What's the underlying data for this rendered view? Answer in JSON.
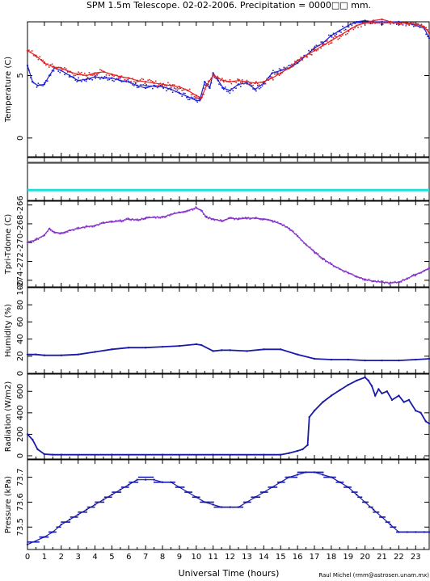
{
  "chart_data": {
    "type": "scatter",
    "title": "SPM 1.5m Telescope. 02-02-2006. Precipitation = 0000□□ mm.",
    "xlabel": "Universal Time (hours)",
    "credit": "Raul Michel (rmm@astrosen.unam.mx)",
    "x_ticks": [
      "0",
      "1",
      "2",
      "3",
      "4",
      "5",
      "6",
      "7",
      "8",
      "9",
      "10",
      "11",
      "12",
      "13",
      "14",
      "15",
      "16",
      "17",
      "18",
      "19",
      "20",
      "21",
      "22",
      "23"
    ],
    "xlim": [
      0,
      23.8
    ],
    "panels": [
      {
        "id": "temperature",
        "ylabel": "Temperature (C)",
        "ylim": [
          -1.5,
          9.3
        ],
        "ticks": [
          "0",
          "5"
        ],
        "tick_values": [
          0,
          5
        ],
        "colors": {
          "outside": "#2222cc",
          "dome": "#dd2222"
        },
        "series": [
          {
            "name": "",
            "color": "#2222cc",
            "x": [
              0,
              0.3,
              0.6,
              1,
              1.3,
              1.6,
              2,
              2.5,
              3,
              3.5,
              4,
              4.5,
              5,
              5.5,
              6,
              6.5,
              7,
              7.5,
              8,
              8.5,
              9,
              9.5,
              10,
              10.2,
              10.5,
              10.8,
              11,
              11.3,
              11.6,
              12,
              12.5,
              13,
              13.5,
              14,
              14.5,
              15,
              15.5,
              16,
              16.5,
              17,
              17.5,
              18,
              18.5,
              19,
              19.5,
              20,
              20.5,
              21,
              21.5,
              22,
              22.5,
              23,
              23.5,
              23.8
            ],
            "y": [
              5.8,
              4.5,
              4.2,
              4.3,
              5.0,
              5.6,
              5.4,
              5.0,
              4.6,
              4.7,
              4.9,
              4.8,
              4.8,
              4.6,
              4.5,
              4.2,
              4.0,
              4.2,
              4.1,
              3.9,
              3.6,
              3.3,
              3.0,
              3.0,
              4.5,
              4.0,
              5.2,
              4.6,
              4.0,
              3.8,
              4.3,
              4.4,
              3.9,
              4.4,
              5.2,
              5.4,
              5.6,
              6.0,
              6.6,
              7.2,
              7.6,
              8.2,
              8.6,
              9.0,
              9.3,
              9.4,
              9.3,
              9.3,
              9.3,
              9.3,
              9.2,
              9.0,
              8.8,
              8.0
            ]
          },
          {
            "name": "",
            "color": "#dd2222",
            "x": [
              0,
              0.5,
              1,
              1.5,
              2,
              2.5,
              3,
              3.5,
              4,
              4.5,
              5,
              5.5,
              6,
              6.5,
              7,
              7.5,
              8,
              8.5,
              9,
              9.5,
              10,
              10.3,
              10.6,
              11,
              11.3,
              11.6,
              12,
              12.5,
              13,
              13.5,
              14,
              14.5,
              15,
              15.5,
              16,
              16.5,
              17,
              17.5,
              18,
              18.5,
              19,
              19.5,
              20,
              20.5,
              21,
              21.5,
              22,
              22.5,
              23,
              23.5,
              23.8
            ],
            "y": [
              7.0,
              6.6,
              6.0,
              5.7,
              5.6,
              5.3,
              5.1,
              5.0,
              5.2,
              5.3,
              5.1,
              4.9,
              4.8,
              4.6,
              4.5,
              4.4,
              4.3,
              4.2,
              4.1,
              3.8,
              3.4,
              3.2,
              4.2,
              5.0,
              4.8,
              4.6,
              4.5,
              4.6,
              4.5,
              4.4,
              4.5,
              4.8,
              5.2,
              5.6,
              6.2,
              6.6,
              7.0,
              7.4,
              7.8,
              8.2,
              8.6,
              9.0,
              9.2,
              9.4,
              9.5,
              9.3,
              9.2,
              9.2,
              9.1,
              8.9,
              8.4
            ]
          }
        ]
      },
      {
        "id": "reference",
        "ylabel": "",
        "series": [
          {
            "name": "",
            "color": "#555555",
            "fraction": 0.12
          },
          {
            "name": "",
            "color": "#22dddd",
            "fraction": 0.76
          }
        ]
      },
      {
        "id": "tpri-tdome",
        "ylabel": "Tpri-Tdome (C)",
        "ylim": [
          -274.7,
          -265.6
        ],
        "ticks": [
          "-274",
          "-272",
          "-270",
          "-268",
          "-266"
        ],
        "tick_values": [
          -274,
          -272,
          -270,
          -268,
          -266
        ],
        "colors": {
          "main": "#8833cc"
        },
        "series": [
          {
            "name": "",
            "color": "#8833cc",
            "x": [
              0,
              0.5,
              1,
              1.3,
              1.6,
              2,
              2.5,
              3,
              3.5,
              4,
              4.5,
              5,
              5.5,
              6,
              6.5,
              7,
              7.5,
              8,
              8.5,
              9,
              9.5,
              10,
              10.3,
              10.6,
              11,
              11.5,
              12,
              12.5,
              13,
              13.5,
              14,
              14.5,
              15,
              15.5,
              16,
              16.5,
              17,
              17.5,
              18,
              18.5,
              19,
              19.5,
              20,
              20.5,
              21,
              21.5,
              22,
              22.5,
              23,
              23.5,
              23.8
            ],
            "y": [
              -270.0,
              -269.7,
              -269.2,
              -268.5,
              -268.9,
              -269.0,
              -268.7,
              -268.5,
              -268.3,
              -268.2,
              -267.9,
              -267.8,
              -267.7,
              -267.5,
              -267.6,
              -267.4,
              -267.3,
              -267.3,
              -267.0,
              -266.8,
              -266.6,
              -266.3,
              -266.6,
              -267.3,
              -267.5,
              -267.7,
              -267.4,
              -267.5,
              -267.4,
              -267.4,
              -267.5,
              -267.7,
              -268.0,
              -268.5,
              -269.3,
              -270.2,
              -271.0,
              -271.7,
              -272.3,
              -272.8,
              -273.2,
              -273.6,
              -273.9,
              -274.1,
              -274.2,
              -274.3,
              -274.2,
              -273.8,
              -273.4,
              -273.0,
              -272.7
            ]
          }
        ]
      },
      {
        "id": "humidity",
        "ylabel": "Humidity (%)",
        "ylim": [
          0,
          100
        ],
        "ticks": [
          "0",
          "20",
          "40",
          "60",
          "80",
          "100"
        ],
        "tick_values": [
          0,
          20,
          40,
          60,
          80,
          100
        ],
        "colors": {
          "main": "#1a1aaa"
        },
        "series": [
          {
            "name": "",
            "color": "#1a1aaa",
            "x": [
              0,
              0.5,
              1,
              2,
              3,
              4,
              5,
              6,
              7,
              8,
              9,
              10,
              10.3,
              11,
              11.5,
              12,
              13,
              14,
              15,
              16,
              17,
              18,
              19,
              20,
              21,
              22,
              23,
              23.8
            ],
            "y": [
              22,
              22,
              21,
              21,
              22,
              25,
              28,
              30,
              30,
              31,
              32,
              34,
              33,
              26,
              27,
              27,
              26,
              28,
              28,
              22,
              17,
              16,
              16,
              15,
              15,
              15,
              16,
              17
            ]
          }
        ]
      },
      {
        "id": "radiation",
        "ylabel": "Radiation (W/m2)",
        "ylim": [
          -30,
          760
        ],
        "ticks": [
          "0",
          "200",
          "400",
          "600"
        ],
        "tick_values": [
          0,
          200,
          400,
          600
        ],
        "colors": {
          "main": "#1a1aaa"
        },
        "series": [
          {
            "name": "",
            "color": "#1a1aaa",
            "x": [
              0,
              0.3,
              0.6,
              1,
              1.5,
              2,
              5,
              8,
              11,
              14,
              15,
              15.5,
              16,
              16.3,
              16.6,
              16.7,
              17,
              17.5,
              18,
              18.5,
              19,
              19.5,
              20,
              20.2,
              20.4,
              20.6,
              20.8,
              21,
              21.3,
              21.6,
              22,
              22.3,
              22.6,
              23,
              23.3,
              23.6,
              23.8
            ],
            "y": [
              200,
              150,
              60,
              15,
              10,
              10,
              10,
              10,
              10,
              10,
              10,
              25,
              45,
              60,
              100,
              360,
              420,
              500,
              560,
              610,
              660,
              700,
              730,
              700,
              650,
              560,
              620,
              580,
              600,
              520,
              560,
              500,
              520,
              420,
              400,
              320,
              300
            ]
          }
        ]
      },
      {
        "id": "pressure",
        "ylabel": "Pressure (kPa)",
        "ylim": [
          73.41,
          73.77
        ],
        "ticks": [
          "73.5",
          "73.6",
          "73.7"
        ],
        "tick_values": [
          73.5,
          73.6,
          73.7
        ],
        "colors": {
          "main": "#1a1aaa"
        },
        "series": [
          {
            "name": "",
            "color": "#1a1aaa",
            "x": [
              0,
              1,
              1.5,
              2,
              2.5,
              3,
              3.5,
              4,
              4.5,
              5,
              5.5,
              6,
              6.5,
              7,
              7.5,
              8,
              8.5,
              9,
              9.5,
              10,
              10.5,
              11,
              11.5,
              12,
              12.5,
              13,
              13.5,
              14,
              14.5,
              15,
              15.5,
              16,
              16.5,
              17,
              17.5,
              18,
              18.5,
              19,
              19.5,
              20,
              20.5,
              21,
              21.5,
              22,
              22.5,
              23,
              23.5,
              23.8
            ],
            "y": [
              73.43,
              73.46,
              73.48,
              73.51,
              73.53,
              73.55,
              73.57,
              73.59,
              73.61,
              73.63,
              73.65,
              73.67,
              73.69,
              73.69,
              73.69,
              73.68,
              73.68,
              73.66,
              73.64,
              73.62,
              73.6,
              73.59,
              73.58,
              73.58,
              73.58,
              73.6,
              73.62,
              73.64,
              73.66,
              73.68,
              73.7,
              73.71,
              73.72,
              73.72,
              73.71,
              73.7,
              73.68,
              73.66,
              73.63,
              73.6,
              73.57,
              73.54,
              73.51,
              73.48,
              73.48,
              73.48,
              73.48,
              73.48
            ]
          }
        ]
      }
    ]
  }
}
